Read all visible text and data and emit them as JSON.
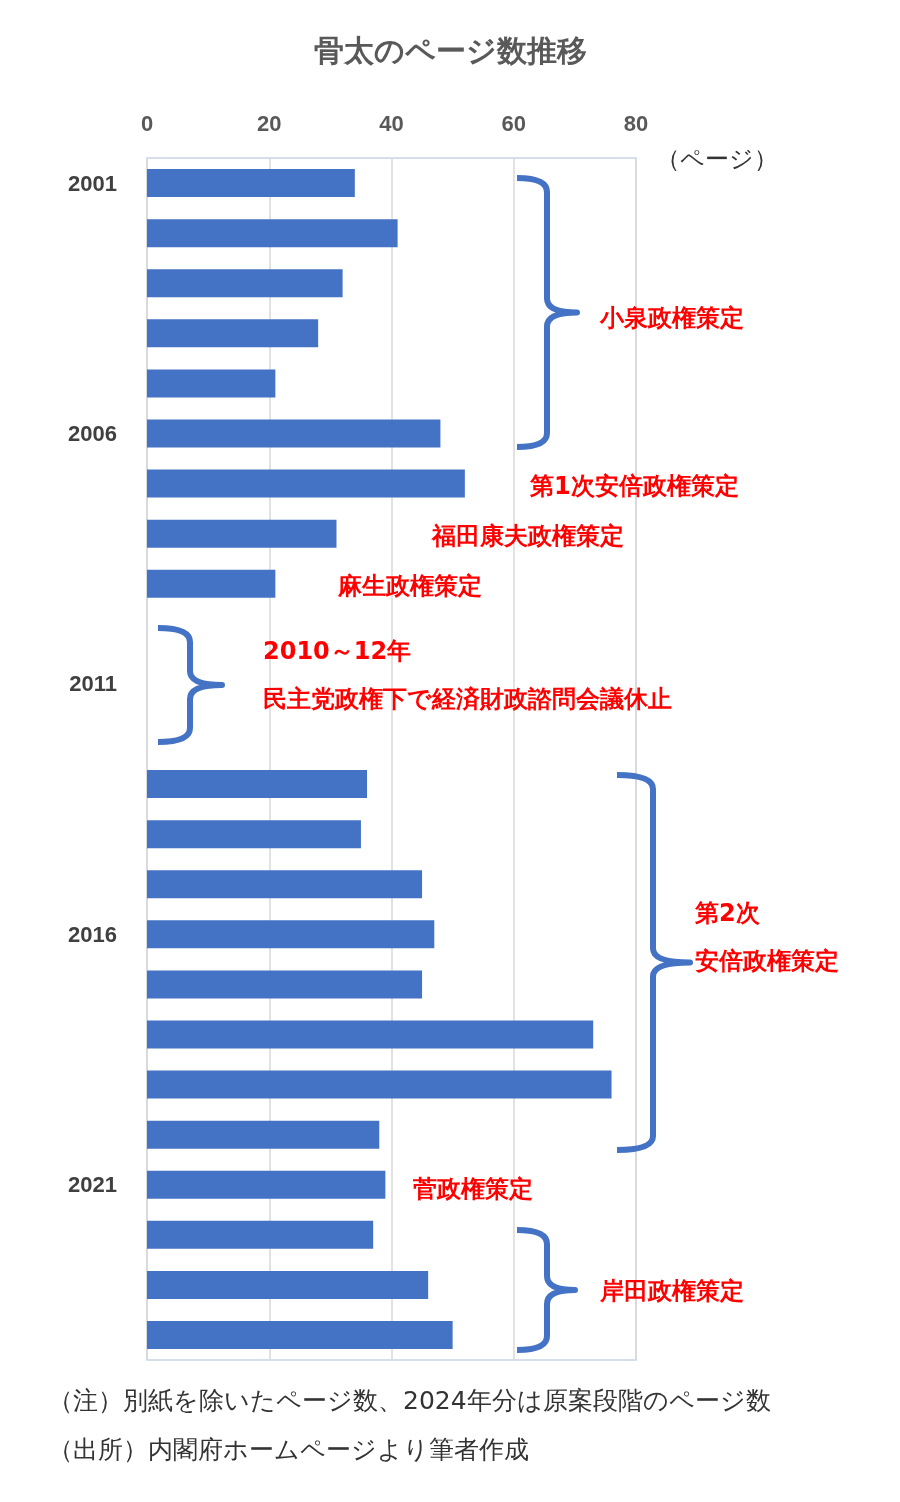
{
  "chart_data": {
    "type": "bar",
    "orientation": "horizontal",
    "title": "骨太のページ数推移",
    "xlabel": "（ページ）",
    "categories": [
      "2001",
      null,
      null,
      null,
      null,
      "2006",
      null,
      null,
      null,
      null,
      "2011",
      null,
      null,
      null,
      null,
      "2016",
      null,
      null,
      null,
      null,
      "2021",
      null,
      null,
      null
    ],
    "series": [
      {
        "color": "#4472c4",
        "values": [
          34,
          41,
          32,
          28,
          21,
          48,
          52,
          31,
          21,
          null,
          null,
          null,
          36,
          35,
          45,
          47,
          45,
          73,
          76,
          38,
          39,
          37,
          46,
          50
        ]
      }
    ],
    "xlim": [
      0,
      80
    ],
    "xticks": [
      0,
      20,
      40,
      60,
      80
    ],
    "grid": "x",
    "annotations": [
      "小泉政権策定",
      "第1次安倍政権策定",
      "福田康夫政権策定",
      "麻生政権策定",
      "2010～12年",
      "民主党政権下で経済財政諮問会議休止",
      "第2次",
      "安倍政権策定",
      "菅政権策定",
      "岸田政権策定",
      "（注）別紙を除いたページ数、2024年分は原案段階のページ数",
      "（出所）内閣府ホームページより筆者作成"
    ]
  }
}
